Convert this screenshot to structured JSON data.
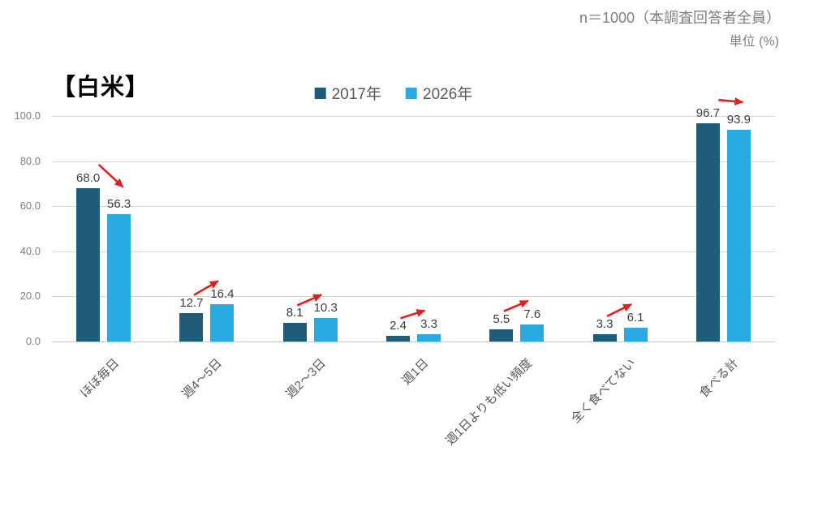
{
  "header": {
    "sample_note": "n＝1000（本調査回答者全員）",
    "unit_note": "単位 (%)"
  },
  "title": "【白米】",
  "legend": {
    "items": [
      {
        "label": "2017年",
        "color": "#1f5c7a"
      },
      {
        "label": "2026年",
        "color": "#29abe2"
      }
    ]
  },
  "chart_data": {
    "type": "bar",
    "title": "【白米】",
    "categories": [
      "ほぼ毎日",
      "週4～5日",
      "週2～3日",
      "週1日",
      "週1日よりも低い頻度",
      "全く食べてない",
      "食べる計"
    ],
    "series": [
      {
        "name": "2017年",
        "color": "#1f5c7a",
        "values": [
          68.0,
          12.7,
          8.1,
          2.4,
          5.5,
          3.3,
          96.7
        ]
      },
      {
        "name": "2026年",
        "color": "#29abe2",
        "values": [
          56.3,
          16.4,
          10.3,
          3.3,
          7.6,
          6.1,
          93.9
        ]
      }
    ],
    "value_label_decimals": 1,
    "ylim": [
      0,
      100
    ],
    "ytick_labels": [
      "0.0",
      "20.0",
      "40.0",
      "60.0",
      "80.0",
      "100.0"
    ],
    "grid": true,
    "legend_position": "top-center",
    "xlabel": "",
    "ylabel": "",
    "annotations": {
      "description": "red trend arrow from 2017 bar toward 2026 bar in each category; up when value increased, down when decreased",
      "arrow_color": "#e0211d",
      "trends": [
        "down",
        "up",
        "up",
        "up",
        "up",
        "up",
        "down"
      ]
    },
    "colors": {
      "gridline": "#d9d9d9",
      "axis_text": "#808080",
      "category_text": "#595959",
      "value_text": "#3d3d3d"
    }
  }
}
